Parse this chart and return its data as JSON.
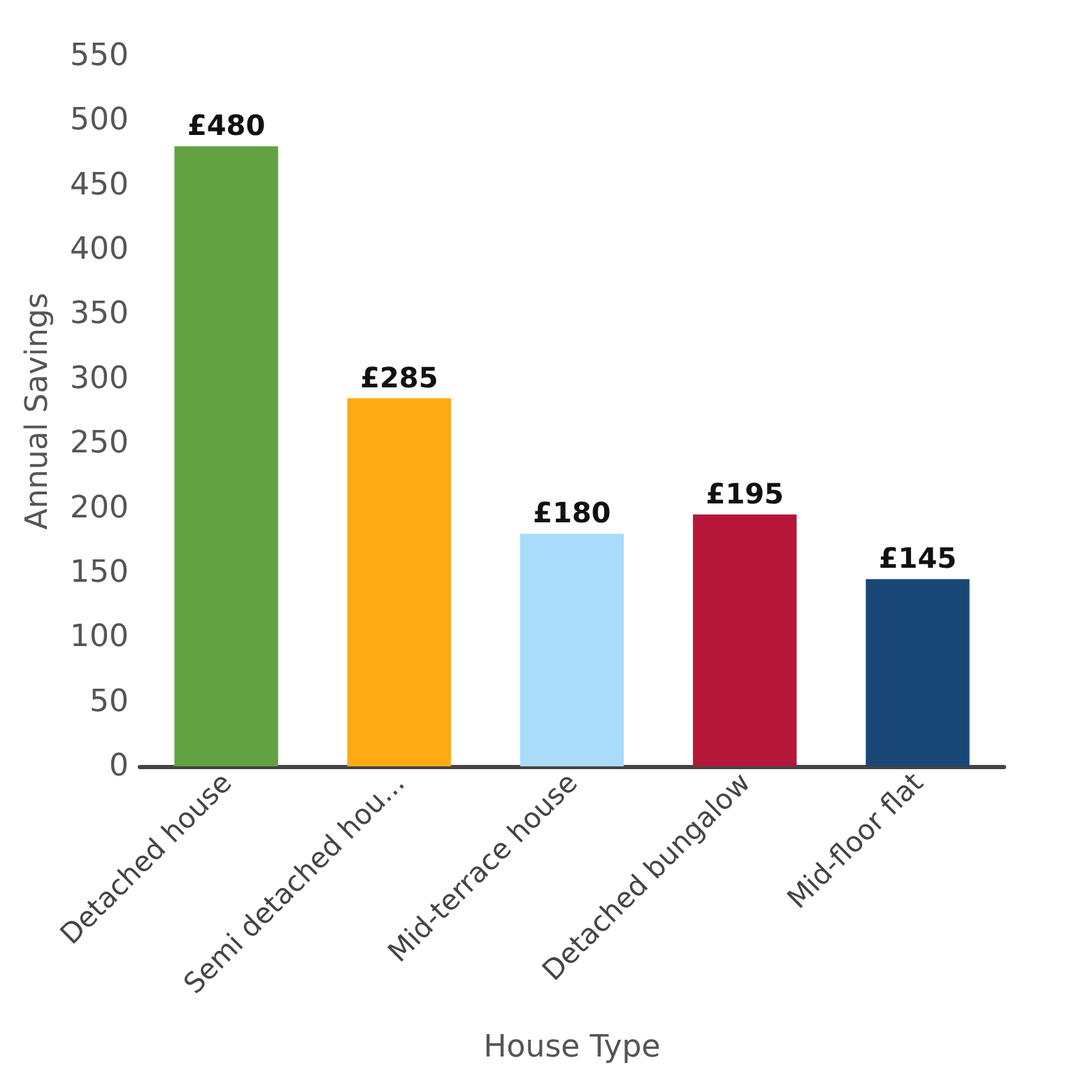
{
  "chart_data": {
    "type": "bar",
    "xlabel": "House Type",
    "ylabel": "Annual Savings",
    "categories": [
      "Detached house",
      "Semi detached hou...",
      "Mid-terrace house",
      "Detached bungalow",
      "Mid-floor flat"
    ],
    "values": [
      480,
      285,
      180,
      195,
      145
    ],
    "colors": [
      "#62a241",
      "#fdab13",
      "#a9dbfb",
      "#b5173b",
      "#1a4876"
    ],
    "value_labels": [
      "£480",
      "£285",
      "£180",
      "£195",
      "£145"
    ],
    "ylim": [
      0,
      550
    ],
    "yticks": [
      0,
      50,
      100,
      150,
      200,
      250,
      300,
      350,
      400,
      450,
      500,
      550
    ],
    "grid": false
  }
}
